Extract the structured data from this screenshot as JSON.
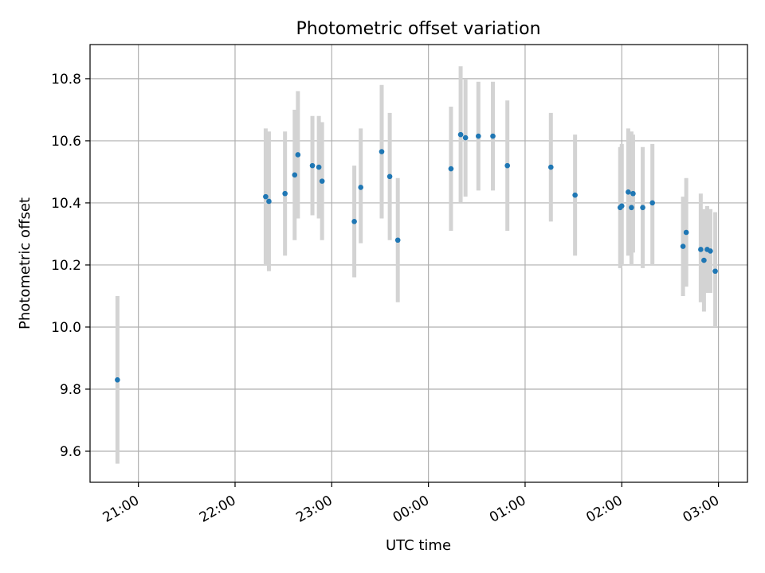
{
  "chart_data": {
    "type": "scatter",
    "title": "Photometric offset variation",
    "xlabel": "UTC time",
    "ylabel": "Photometric offset",
    "x_axis_type": "time",
    "xlim": [
      "20:30",
      "03:18"
    ],
    "ylim": [
      9.5,
      10.91
    ],
    "grid": true,
    "x_ticks": [
      "21:00",
      "22:00",
      "23:00",
      "00:00",
      "01:00",
      "02:00",
      "03:00"
    ],
    "y_ticks": [
      "9.6",
      "9.8",
      "10.0",
      "10.2",
      "10.4",
      "10.6",
      "10.8"
    ],
    "marker_color": "#1f77b4",
    "errorbar_color": "#d3d3d3",
    "points": [
      {
        "time": "20:47",
        "y": 9.83,
        "low": 9.56,
        "high": 10.1
      },
      {
        "time": "22:19",
        "y": 10.42,
        "low": 10.2,
        "high": 10.64
      },
      {
        "time": "22:21",
        "y": 10.405,
        "low": 10.18,
        "high": 10.63
      },
      {
        "time": "22:31",
        "y": 10.43,
        "low": 10.23,
        "high": 10.63
      },
      {
        "time": "22:37",
        "y": 10.49,
        "low": 10.28,
        "high": 10.7
      },
      {
        "time": "22:39",
        "y": 10.555,
        "low": 10.35,
        "high": 10.76
      },
      {
        "time": "22:48",
        "y": 10.52,
        "low": 10.36,
        "high": 10.68
      },
      {
        "time": "22:52",
        "y": 10.515,
        "low": 10.35,
        "high": 10.68
      },
      {
        "time": "22:54",
        "y": 10.47,
        "low": 10.28,
        "high": 10.66
      },
      {
        "time": "23:14",
        "y": 10.34,
        "low": 10.16,
        "high": 10.52
      },
      {
        "time": "23:18",
        "y": 10.45,
        "low": 10.27,
        "high": 10.64
      },
      {
        "time": "23:31",
        "y": 10.565,
        "low": 10.35,
        "high": 10.78
      },
      {
        "time": "23:36",
        "y": 10.485,
        "low": 10.28,
        "high": 10.69
      },
      {
        "time": "23:41",
        "y": 10.28,
        "low": 10.08,
        "high": 10.48
      },
      {
        "time": "00:14",
        "y": 10.51,
        "low": 10.31,
        "high": 10.71
      },
      {
        "time": "00:20",
        "y": 10.62,
        "low": 10.4,
        "high": 10.84
      },
      {
        "time": "00:23",
        "y": 10.61,
        "low": 10.42,
        "high": 10.8
      },
      {
        "time": "00:31",
        "y": 10.615,
        "low": 10.44,
        "high": 10.79
      },
      {
        "time": "00:40",
        "y": 10.615,
        "low": 10.44,
        "high": 10.79
      },
      {
        "time": "00:49",
        "y": 10.52,
        "low": 10.31,
        "high": 10.73
      },
      {
        "time": "01:16",
        "y": 10.515,
        "low": 10.34,
        "high": 10.69
      },
      {
        "time": "01:31",
        "y": 10.425,
        "low": 10.23,
        "high": 10.62
      },
      {
        "time": "01:59",
        "y": 10.385,
        "low": 10.19,
        "high": 10.58
      },
      {
        "time": "02:00",
        "y": 10.39,
        "low": 10.2,
        "high": 10.59
      },
      {
        "time": "02:04",
        "y": 10.435,
        "low": 10.23,
        "high": 10.64
      },
      {
        "time": "02:06",
        "y": 10.385,
        "low": 10.2,
        "high": 10.63
      },
      {
        "time": "02:07",
        "y": 10.43,
        "low": 10.24,
        "high": 10.62
      },
      {
        "time": "02:13",
        "y": 10.385,
        "low": 10.19,
        "high": 10.58
      },
      {
        "time": "02:19",
        "y": 10.4,
        "low": 10.2,
        "high": 10.59
      },
      {
        "time": "02:38",
        "y": 10.26,
        "low": 10.1,
        "high": 10.42
      },
      {
        "time": "02:40",
        "y": 10.305,
        "low": 10.13,
        "high": 10.48
      },
      {
        "time": "02:49",
        "y": 10.25,
        "low": 10.08,
        "high": 10.43
      },
      {
        "time": "02:51",
        "y": 10.215,
        "low": 10.05,
        "high": 10.38
      },
      {
        "time": "02:53",
        "y": 10.25,
        "low": 10.11,
        "high": 10.39
      },
      {
        "time": "02:55",
        "y": 10.245,
        "low": 10.11,
        "high": 10.38
      },
      {
        "time": "02:58",
        "y": 10.18,
        "low": 10.0,
        "high": 10.37
      }
    ]
  }
}
